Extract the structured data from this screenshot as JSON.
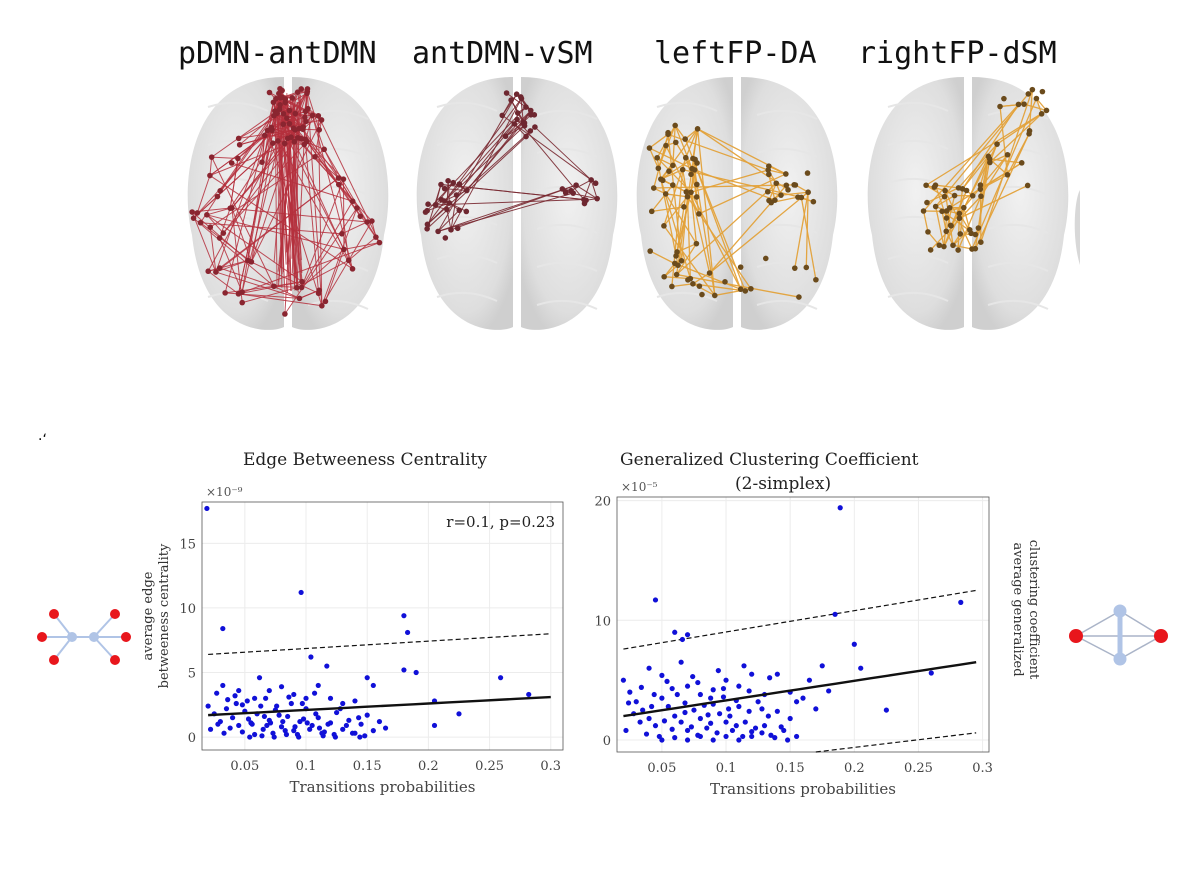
{
  "panel_label": "·‘",
  "brain_panels": [
    {
      "title": "pDMN-antDMN",
      "color": "#b5303d"
    },
    {
      "title": "antDMN-vSM",
      "color": "#7a2a32"
    },
    {
      "title": "leftFP-DA",
      "color": "#e3a23a"
    },
    {
      "title": "rightFP-dSM",
      "color": "#e3a23a"
    }
  ],
  "icons": {
    "left": "tree-graph-icon",
    "right": "simplex-graph-icon",
    "node_red": "#e8161c",
    "node_blue": "#b0c4e6"
  },
  "chart_data": [
    {
      "type": "scatter",
      "title": "Edge Betweeness Centrality",
      "ylabel": "average edge betweeness centrality",
      "xlabel": "Transitions probabilities",
      "exponent_label": "×10⁻⁹",
      "annotation": "r=0.1, p=0.23",
      "xlim": [
        0.015,
        0.31
      ],
      "ylim": [
        -1,
        18.2
      ],
      "xticks": [
        0.05,
        0.1,
        0.15,
        0.2,
        0.25,
        0.3
      ],
      "xtick_labels": [
        "0.05",
        "0.1",
        "0.15",
        "0.2",
        "0.25",
        "0.3"
      ],
      "yticks": [
        0,
        5,
        10,
        15
      ],
      "ytick_labels": [
        "0",
        "5",
        "10",
        "15"
      ],
      "grid": true,
      "point_color": "#1010d8",
      "fit_line": {
        "x": [
          0.02,
          0.3
        ],
        "y": [
          1.7,
          3.1
        ]
      },
      "ci_upper": {
        "x": [
          0.02,
          0.3
        ],
        "y": [
          6.4,
          8.0
        ]
      },
      "ci_lower": null,
      "points": [
        [
          0.019,
          17.7
        ],
        [
          0.096,
          11.2
        ],
        [
          0.032,
          8.4
        ],
        [
          0.18,
          9.4
        ],
        [
          0.183,
          8.1
        ],
        [
          0.104,
          6.2
        ],
        [
          0.259,
          4.6
        ],
        [
          0.282,
          3.3
        ],
        [
          0.205,
          2.8
        ],
        [
          0.225,
          1.8
        ],
        [
          0.205,
          0.9
        ],
        [
          0.18,
          5.2
        ],
        [
          0.19,
          5.0
        ],
        [
          0.117,
          5.5
        ],
        [
          0.15,
          4.6
        ],
        [
          0.155,
          4.0
        ],
        [
          0.062,
          4.6
        ],
        [
          0.032,
          4.0
        ],
        [
          0.045,
          3.6
        ],
        [
          0.058,
          3.0
        ],
        [
          0.07,
          3.6
        ],
        [
          0.08,
          3.9
        ],
        [
          0.09,
          3.3
        ],
        [
          0.1,
          3.0
        ],
        [
          0.11,
          4.0
        ],
        [
          0.12,
          3.0
        ],
        [
          0.13,
          2.6
        ],
        [
          0.14,
          2.8
        ],
        [
          0.02,
          2.4
        ],
        [
          0.025,
          1.8
        ],
        [
          0.03,
          1.2
        ],
        [
          0.035,
          2.2
        ],
        [
          0.04,
          1.5
        ],
        [
          0.045,
          0.9
        ],
        [
          0.05,
          2.0
        ],
        [
          0.055,
          1.1
        ],
        [
          0.06,
          1.8
        ],
        [
          0.065,
          0.6
        ],
        [
          0.07,
          1.3
        ],
        [
          0.075,
          2.1
        ],
        [
          0.08,
          0.8
        ],
        [
          0.085,
          1.6
        ],
        [
          0.09,
          0.5
        ],
        [
          0.095,
          1.2
        ],
        [
          0.1,
          2.2
        ],
        [
          0.105,
          0.9
        ],
        [
          0.11,
          1.5
        ],
        [
          0.115,
          0.4
        ],
        [
          0.12,
          1.1
        ],
        [
          0.125,
          1.9
        ],
        [
          0.13,
          0.6
        ],
        [
          0.135,
          1.3
        ],
        [
          0.14,
          0.3
        ],
        [
          0.145,
          1.0
        ],
        [
          0.15,
          1.7
        ],
        [
          0.155,
          0.5
        ],
        [
          0.16,
          1.2
        ],
        [
          0.165,
          0.7
        ],
        [
          0.022,
          0.6
        ],
        [
          0.028,
          1.0
        ],
        [
          0.033,
          0.3
        ],
        [
          0.038,
          0.7
        ],
        [
          0.043,
          2.6
        ],
        [
          0.048,
          0.4
        ],
        [
          0.053,
          1.4
        ],
        [
          0.058,
          0.2
        ],
        [
          0.063,
          2.4
        ],
        [
          0.068,
          0.9
        ],
        [
          0.073,
          0.3
        ],
        [
          0.078,
          1.7
        ],
        [
          0.083,
          0.5
        ],
        [
          0.088,
          2.6
        ],
        [
          0.093,
          0.2
        ],
        [
          0.098,
          1.4
        ],
        [
          0.103,
          0.6
        ],
        [
          0.108,
          1.8
        ],
        [
          0.113,
          0.3
        ],
        [
          0.118,
          1.0
        ],
        [
          0.123,
          0.2
        ],
        [
          0.128,
          2.2
        ],
        [
          0.133,
          0.9
        ],
        [
          0.138,
          0.3
        ],
        [
          0.143,
          1.5
        ],
        [
          0.148,
          0.1
        ],
        [
          0.054,
          0.0
        ],
        [
          0.064,
          0.1
        ],
        [
          0.074,
          0.0
        ],
        [
          0.084,
          0.2
        ],
        [
          0.094,
          0.0
        ],
        [
          0.114,
          0.1
        ],
        [
          0.124,
          0.0
        ],
        [
          0.144,
          0.0
        ],
        [
          0.042,
          3.2
        ],
        [
          0.052,
          2.8
        ],
        [
          0.067,
          3.0
        ],
        [
          0.076,
          2.4
        ],
        [
          0.097,
          2.6
        ],
        [
          0.107,
          3.4
        ],
        [
          0.027,
          3.4
        ],
        [
          0.036,
          2.9
        ],
        [
          0.048,
          2.5
        ],
        [
          0.086,
          3.1
        ],
        [
          0.066,
          1.6
        ],
        [
          0.056,
          1.0
        ],
        [
          0.101,
          1.1
        ],
        [
          0.111,
          0.7
        ],
        [
          0.071,
          1.1
        ],
        [
          0.081,
          1.2
        ],
        [
          0.091,
          0.8
        ]
      ]
    },
    {
      "type": "scatter",
      "title": "Generalized Clustering Coefficient",
      "subtitle": "(2-simplex)",
      "ylabel": "average generalized clustering coefficient",
      "xlabel": "Transitions probabilities",
      "exponent_label": "×10⁻⁵",
      "annotation": "",
      "xlim": [
        0.015,
        0.305
      ],
      "ylim": [
        -1,
        20.3
      ],
      "xticks": [
        0.05,
        0.1,
        0.15,
        0.2,
        0.25,
        0.3
      ],
      "xtick_labels": [
        "0.05",
        "0.1",
        "0.15",
        "0.2",
        "0.25",
        "0.3"
      ],
      "yticks": [
        0,
        10,
        20
      ],
      "ytick_labels": [
        "0",
        "10",
        "20"
      ],
      "grid": true,
      "point_color": "#1010d8",
      "fit_line": {
        "x": [
          0.02,
          0.295
        ],
        "y": [
          2.0,
          6.5
        ]
      },
      "ci_upper": {
        "x": [
          0.02,
          0.295
        ],
        "y": [
          7.6,
          12.5
        ]
      },
      "ci_lower": {
        "x": [
          0.17,
          0.295
        ],
        "y": [
          -1.0,
          0.6
        ]
      },
      "points": [
        [
          0.189,
          19.4
        ],
        [
          0.283,
          11.5
        ],
        [
          0.185,
          10.5
        ],
        [
          0.045,
          11.7
        ],
        [
          0.06,
          9.0
        ],
        [
          0.066,
          8.4
        ],
        [
          0.07,
          8.8
        ],
        [
          0.04,
          6.0
        ],
        [
          0.05,
          5.4
        ],
        [
          0.065,
          6.5
        ],
        [
          0.2,
          8.0
        ],
        [
          0.205,
          6.0
        ],
        [
          0.26,
          5.6
        ],
        [
          0.225,
          2.5
        ],
        [
          0.175,
          6.2
        ],
        [
          0.18,
          4.1
        ],
        [
          0.165,
          5.0
        ],
        [
          0.15,
          4.0
        ],
        [
          0.14,
          5.5
        ],
        [
          0.12,
          5.5
        ],
        [
          0.13,
          3.8
        ],
        [
          0.11,
          4.5
        ],
        [
          0.1,
          5.0
        ],
        [
          0.09,
          4.2
        ],
        [
          0.08,
          3.8
        ],
        [
          0.07,
          4.5
        ],
        [
          0.02,
          5.0
        ],
        [
          0.025,
          4.0
        ],
        [
          0.03,
          3.2
        ],
        [
          0.035,
          2.5
        ],
        [
          0.04,
          1.8
        ],
        [
          0.045,
          1.2
        ],
        [
          0.05,
          3.5
        ],
        [
          0.055,
          2.8
        ],
        [
          0.06,
          2.0
        ],
        [
          0.065,
          1.5
        ],
        [
          0.07,
          0.8
        ],
        [
          0.075,
          2.5
        ],
        [
          0.08,
          1.8
        ],
        [
          0.085,
          1.0
        ],
        [
          0.09,
          3.0
        ],
        [
          0.095,
          2.2
        ],
        [
          0.1,
          1.5
        ],
        [
          0.105,
          0.8
        ],
        [
          0.11,
          2.8
        ],
        [
          0.115,
          1.5
        ],
        [
          0.12,
          0.7
        ],
        [
          0.125,
          3.2
        ],
        [
          0.13,
          1.2
        ],
        [
          0.135,
          0.4
        ],
        [
          0.14,
          2.4
        ],
        [
          0.145,
          0.8
        ],
        [
          0.15,
          1.8
        ],
        [
          0.155,
          0.3
        ],
        [
          0.16,
          3.5
        ],
        [
          0.022,
          0.8
        ],
        [
          0.028,
          2.2
        ],
        [
          0.033,
          1.5
        ],
        [
          0.038,
          0.5
        ],
        [
          0.042,
          2.8
        ],
        [
          0.048,
          0.3
        ],
        [
          0.052,
          1.6
        ],
        [
          0.058,
          0.9
        ],
        [
          0.062,
          3.8
        ],
        [
          0.068,
          2.3
        ],
        [
          0.073,
          1.1
        ],
        [
          0.078,
          0.4
        ],
        [
          0.083,
          2.9
        ],
        [
          0.088,
          1.4
        ],
        [
          0.093,
          0.6
        ],
        [
          0.098,
          3.6
        ],
        [
          0.103,
          2.0
        ],
        [
          0.108,
          1.2
        ],
        [
          0.113,
          0.3
        ],
        [
          0.118,
          2.4
        ],
        [
          0.123,
          1.0
        ],
        [
          0.128,
          0.6
        ],
        [
          0.133,
          2.0
        ],
        [
          0.138,
          0.2
        ],
        [
          0.143,
          1.1
        ],
        [
          0.148,
          0.0
        ],
        [
          0.05,
          0.0
        ],
        [
          0.06,
          0.2
        ],
        [
          0.07,
          0.0
        ],
        [
          0.08,
          0.3
        ],
        [
          0.09,
          0.0
        ],
        [
          0.1,
          0.3
        ],
        [
          0.11,
          0.0
        ],
        [
          0.12,
          0.3
        ],
        [
          0.058,
          4.3
        ],
        [
          0.068,
          3.1
        ],
        [
          0.078,
          4.8
        ],
        [
          0.088,
          3.5
        ],
        [
          0.098,
          4.3
        ],
        [
          0.108,
          3.3
        ],
        [
          0.118,
          4.1
        ],
        [
          0.128,
          2.6
        ],
        [
          0.024,
          3.1
        ],
        [
          0.034,
          4.4
        ],
        [
          0.044,
          3.8
        ],
        [
          0.054,
          4.9
        ],
        [
          0.074,
          5.3
        ],
        [
          0.094,
          5.8
        ],
        [
          0.114,
          6.2
        ],
        [
          0.134,
          5.2
        ],
        [
          0.155,
          3.2
        ],
        [
          0.17,
          2.6
        ],
        [
          0.102,
          2.6
        ],
        [
          0.086,
          2.1
        ]
      ]
    }
  ]
}
